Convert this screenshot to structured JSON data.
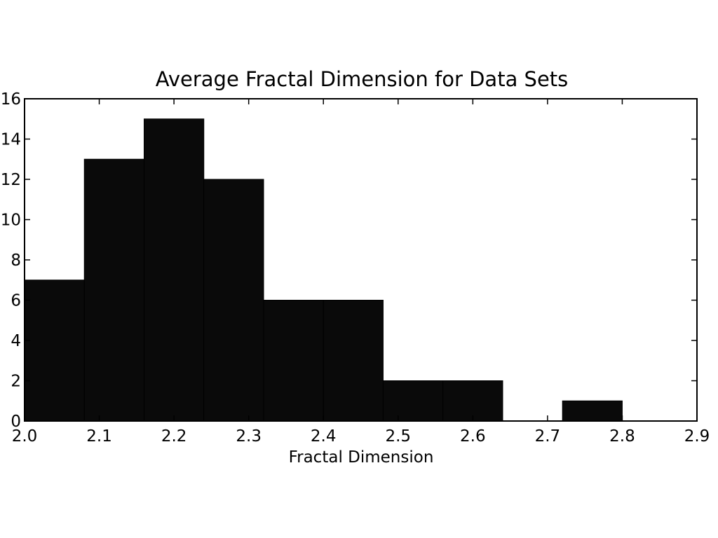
{
  "chart_data": {
    "type": "bar",
    "title": "Average Fractal Dimension for Data Sets",
    "xlabel": "Fractal Dimension",
    "ylabel": "",
    "bins": [
      {
        "x0": 2.0,
        "x1": 2.08,
        "count": 7
      },
      {
        "x0": 2.08,
        "x1": 2.16,
        "count": 13
      },
      {
        "x0": 2.16,
        "x1": 2.24,
        "count": 15
      },
      {
        "x0": 2.24,
        "x1": 2.32,
        "count": 12
      },
      {
        "x0": 2.32,
        "x1": 2.4,
        "count": 6
      },
      {
        "x0": 2.4,
        "x1": 2.48,
        "count": 6
      },
      {
        "x0": 2.48,
        "x1": 2.56,
        "count": 2
      },
      {
        "x0": 2.56,
        "x1": 2.64,
        "count": 2
      },
      {
        "x0": 2.64,
        "x1": 2.72,
        "count": 0
      },
      {
        "x0": 2.72,
        "x1": 2.8,
        "count": 1
      }
    ],
    "xlim": [
      2.0,
      2.9
    ],
    "ylim": [
      0,
      16
    ],
    "xticks": [
      "2.0",
      "2.1",
      "2.2",
      "2.3",
      "2.4",
      "2.5",
      "2.6",
      "2.7",
      "2.8",
      "2.9"
    ],
    "yticks": [
      "0",
      "2",
      "4",
      "6",
      "8",
      "10",
      "12",
      "14",
      "16"
    ],
    "bar_color": "#0a0a0a",
    "grid": false
  }
}
